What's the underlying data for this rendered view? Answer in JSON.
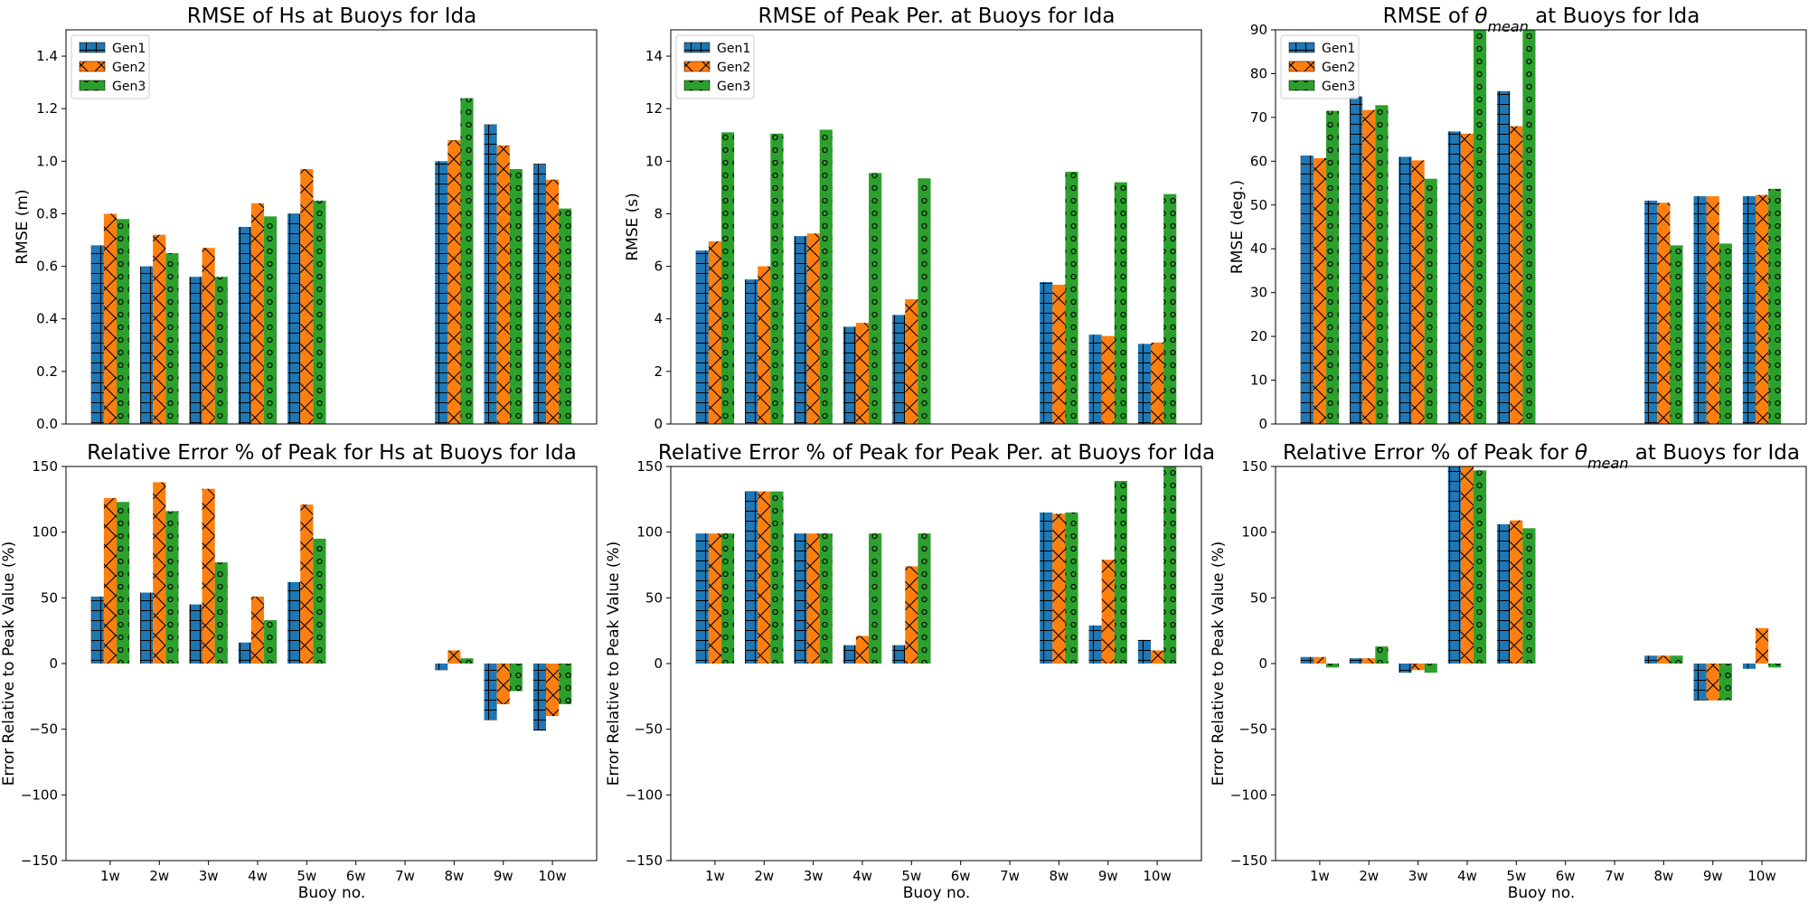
{
  "figure": {
    "colors": {
      "Gen1": "#1f77b4",
      "Gen2": "#ff7f0e",
      "Gen3": "#2ca02c"
    },
    "hatches": {
      "Gen1": "plus",
      "Gen2": "cross",
      "Gen3": "circles"
    }
  },
  "chart_data": [
    {
      "type": "bar",
      "title": "RMSE of Hs at Buoys for Ida",
      "title_pre": "RMSE of Hs at Buoys for Ida",
      "title_sym": "",
      "title_sub": "",
      "title_post": "",
      "xlabel": "",
      "ylabel": "RMSE (m)",
      "categories": [
        "1w",
        "2w",
        "3w",
        "4w",
        "5w",
        "6w",
        "7w",
        "8w",
        "9w",
        "10w"
      ],
      "ylim": [
        0,
        1.5
      ],
      "yticks": [
        "0.0",
        "0.2",
        "0.4",
        "0.6",
        "0.8",
        "1.0",
        "1.2",
        "1.4"
      ],
      "ytick_values": [
        0,
        0.2,
        0.4,
        0.6,
        0.8,
        1.0,
        1.2,
        1.4
      ],
      "show_xticks": false,
      "legend": "top-left",
      "series": [
        {
          "name": "Gen1",
          "values": [
            0.68,
            0.6,
            0.56,
            0.75,
            0.8,
            null,
            null,
            1.0,
            1.14,
            0.99
          ]
        },
        {
          "name": "Gen2",
          "values": [
            0.8,
            0.72,
            0.67,
            0.84,
            0.97,
            null,
            null,
            1.08,
            1.06,
            0.93
          ]
        },
        {
          "name": "Gen3",
          "values": [
            0.78,
            0.65,
            0.56,
            0.79,
            0.85,
            null,
            null,
            1.24,
            0.97,
            0.82
          ]
        }
      ]
    },
    {
      "type": "bar",
      "title": "RMSE of Peak Per. at Buoys for Ida",
      "title_pre": "RMSE of Peak Per. at Buoys for Ida",
      "title_sym": "",
      "title_sub": "",
      "title_post": "",
      "xlabel": "",
      "ylabel": "RMSE (s)",
      "categories": [
        "1w",
        "2w",
        "3w",
        "4w",
        "5w",
        "6w",
        "7w",
        "8w",
        "9w",
        "10w"
      ],
      "ylim": [
        0,
        15
      ],
      "yticks": [
        "0",
        "2",
        "4",
        "6",
        "8",
        "10",
        "12",
        "14"
      ],
      "ytick_values": [
        0,
        2,
        4,
        6,
        8,
        10,
        12,
        14
      ],
      "show_xticks": false,
      "legend": "top-left",
      "series": [
        {
          "name": "Gen1",
          "values": [
            6.6,
            5.5,
            7.15,
            3.7,
            4.15,
            null,
            null,
            5.4,
            3.4,
            3.05
          ]
        },
        {
          "name": "Gen2",
          "values": [
            6.95,
            6.0,
            7.25,
            3.85,
            4.75,
            null,
            null,
            5.3,
            3.35,
            3.1
          ]
        },
        {
          "name": "Gen3",
          "values": [
            11.1,
            11.05,
            11.2,
            9.55,
            9.35,
            null,
            null,
            9.6,
            9.2,
            8.75
          ]
        }
      ]
    },
    {
      "type": "bar",
      "title": "RMSE of θmean at Buoys for Ida",
      "title_pre": "RMSE of ",
      "title_sym": "θ",
      "title_sub": "mean",
      "title_post": " at Buoys for Ida",
      "xlabel": "",
      "ylabel": "RMSE (deg.)",
      "categories": [
        "1w",
        "2w",
        "3w",
        "4w",
        "5w",
        "6w",
        "7w",
        "8w",
        "9w",
        "10w"
      ],
      "ylim": [
        0,
        90
      ],
      "yticks": [
        "0",
        "10",
        "20",
        "30",
        "40",
        "50",
        "60",
        "70",
        "80",
        "90"
      ],
      "ytick_values": [
        0,
        10,
        20,
        30,
        40,
        50,
        60,
        70,
        80,
        90
      ],
      "show_xticks": false,
      "legend": "top-left",
      "series": [
        {
          "name": "Gen1",
          "values": [
            61.3,
            74.8,
            61.0,
            66.8,
            76.0,
            null,
            null,
            51.0,
            52.0,
            52.0
          ]
        },
        {
          "name": "Gen2",
          "values": [
            60.7,
            71.7,
            60.2,
            66.3,
            68.0,
            null,
            null,
            50.5,
            52.0,
            52.3
          ]
        },
        {
          "name": "Gen3",
          "values": [
            71.5,
            72.8,
            56.0,
            90,
            90,
            null,
            null,
            40.8,
            41.2,
            53.7
          ]
        }
      ]
    },
    {
      "type": "bar",
      "title": "Relative Error % of Peak for Hs at Buoys for Ida",
      "title_pre": "Relative Error % of Peak for Hs at Buoys for Ida",
      "title_sym": "",
      "title_sub": "",
      "title_post": "",
      "xlabel": "Buoy no.",
      "ylabel": "Error Relative to Peak Value (%)",
      "categories": [
        "1w",
        "2w",
        "3w",
        "4w",
        "5w",
        "6w",
        "7w",
        "8w",
        "9w",
        "10w"
      ],
      "ylim": [
        -150,
        150
      ],
      "yticks": [
        "−150",
        "−100",
        "−50",
        "0",
        "50",
        "100",
        "150"
      ],
      "ytick_values": [
        -150,
        -100,
        -50,
        0,
        50,
        100,
        150
      ],
      "show_xticks": true,
      "legend": "none",
      "series": [
        {
          "name": "Gen1",
          "values": [
            51,
            54,
            45,
            16,
            62,
            null,
            null,
            -5,
            -43,
            -51
          ]
        },
        {
          "name": "Gen2",
          "values": [
            126,
            138,
            133,
            51,
            121,
            null,
            null,
            10,
            -31,
            -40
          ]
        },
        {
          "name": "Gen3",
          "values": [
            123,
            116,
            77,
            33,
            95,
            null,
            null,
            4,
            -21,
            -31
          ]
        }
      ]
    },
    {
      "type": "bar",
      "title": "Relative Error % of Peak for Peak Per. at Buoys for Ida",
      "title_pre": "Relative Error % of Peak for Peak Per. at Buoys for Ida",
      "title_sym": "",
      "title_sub": "",
      "title_post": "",
      "xlabel": "Buoy no.",
      "ylabel": "Error Relative to Peak Value (%)",
      "categories": [
        "1w",
        "2w",
        "3w",
        "4w",
        "5w",
        "6w",
        "7w",
        "8w",
        "9w",
        "10w"
      ],
      "ylim": [
        -150,
        150
      ],
      "yticks": [
        "−150",
        "−100",
        "−50",
        "0",
        "50",
        "100",
        "150"
      ],
      "ytick_values": [
        -150,
        -100,
        -50,
        0,
        50,
        100,
        150
      ],
      "show_xticks": true,
      "legend": "none",
      "series": [
        {
          "name": "Gen1",
          "values": [
            99,
            131,
            99,
            14,
            14,
            null,
            null,
            115,
            29,
            18
          ]
        },
        {
          "name": "Gen2",
          "values": [
            99,
            131,
            99,
            21,
            74,
            null,
            null,
            114,
            79,
            10
          ]
        },
        {
          "name": "Gen3",
          "values": [
            99,
            131,
            99,
            99,
            99,
            null,
            null,
            115,
            139,
            150
          ]
        }
      ]
    },
    {
      "type": "bar",
      "title": "Relative Error % of Peak for θmean at Buoys for Ida",
      "title_pre": "Relative Error % of Peak for ",
      "title_sym": "θ",
      "title_sub": "mean",
      "title_post": " at Buoys for Ida",
      "xlabel": "Buoy no.",
      "ylabel": "Error Relative to Peak Value (%)",
      "categories": [
        "1w",
        "2w",
        "3w",
        "4w",
        "5w",
        "6w",
        "7w",
        "8w",
        "9w",
        "10w"
      ],
      "ylim": [
        -150,
        150
      ],
      "yticks": [
        "−150",
        "−100",
        "−50",
        "0",
        "50",
        "100",
        "150"
      ],
      "ytick_values": [
        -150,
        -100,
        -50,
        0,
        50,
        100,
        150
      ],
      "show_xticks": true,
      "legend": "none",
      "series": [
        {
          "name": "Gen1",
          "values": [
            5,
            4,
            -7,
            150,
            106,
            null,
            null,
            6,
            -28,
            -4
          ]
        },
        {
          "name": "Gen2",
          "values": [
            5,
            4,
            -5,
            150,
            109,
            null,
            null,
            6,
            -28,
            27
          ]
        },
        {
          "name": "Gen3",
          "values": [
            -3,
            13,
            -7,
            147,
            103,
            null,
            null,
            6,
            -28,
            -3
          ]
        }
      ]
    }
  ]
}
